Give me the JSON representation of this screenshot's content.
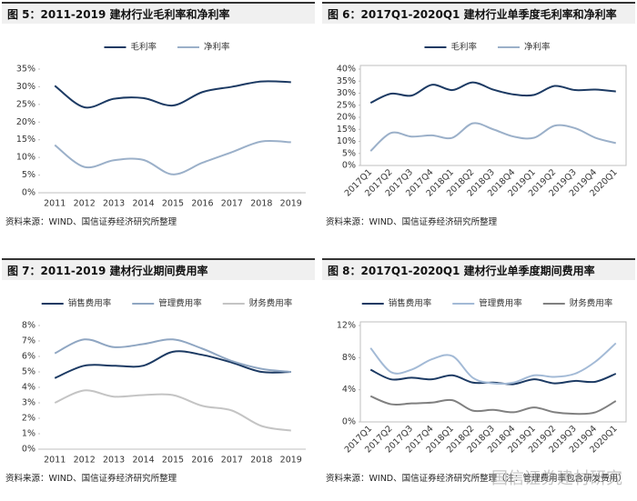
{
  "watermark": "国信证券建材研究",
  "chart_data": [
    {
      "type": "line",
      "title": "图 5：2011-2019 建材行业毛利率和净利率",
      "source": "资料来源：WIND、国信证券经济研究所整理",
      "categories": [
        "2011",
        "2012",
        "2013",
        "2014",
        "2015",
        "2016",
        "2017",
        "2018",
        "2019"
      ],
      "series": [
        {
          "name": "毛利率",
          "color": "#1c3a63",
          "values": [
            30.3,
            24.2,
            26.6,
            26.8,
            24.7,
            28.5,
            30.0,
            31.5,
            31.3
          ]
        },
        {
          "name": "净利率",
          "color": "#9bb0c9",
          "values": [
            13.5,
            7.3,
            9.2,
            9.3,
            5.2,
            8.5,
            11.5,
            14.5,
            14.3
          ]
        }
      ],
      "ylim": [
        0,
        35
      ],
      "yticks": [
        {
          "value": 0,
          "label": "0%"
        },
        {
          "value": 5,
          "label": "5%"
        },
        {
          "value": 10,
          "label": "10%"
        },
        {
          "value": 15,
          "label": "15%"
        },
        {
          "value": 20,
          "label": "20%"
        },
        {
          "value": 25,
          "label": "25%"
        },
        {
          "value": 30,
          "label": "30%"
        },
        {
          "value": 35,
          "label": "35%"
        }
      ],
      "frame": false,
      "rotate_labels": false
    },
    {
      "type": "line",
      "title": "图 6：2017Q1-2020Q1 建材行业单季度毛利率和净利率",
      "source": "资料来源：WIND、国信证券经济研究所整理",
      "categories": [
        "2017Q1",
        "2017Q2",
        "2017Q3",
        "2017Q4",
        "2018Q1",
        "2018Q2",
        "2018Q3",
        "2018Q4",
        "2019Q1",
        "2019Q2",
        "2019Q3",
        "2019Q4",
        "2020Q1"
      ],
      "series": [
        {
          "name": "毛利率",
          "color": "#1c3a63",
          "values": [
            26.0,
            29.8,
            29.0,
            33.5,
            31.3,
            34.5,
            31.5,
            29.5,
            29.3,
            33.0,
            31.3,
            31.5,
            30.7
          ]
        },
        {
          "name": "净利率",
          "color": "#9bb0c9",
          "values": [
            6.0,
            13.5,
            12.0,
            12.5,
            11.5,
            17.5,
            15.0,
            12.0,
            11.5,
            16.5,
            15.5,
            11.5,
            9.3
          ]
        }
      ],
      "ylim": [
        0,
        40
      ],
      "yticks": [
        {
          "value": 0,
          "label": "0%"
        },
        {
          "value": 5,
          "label": "5%"
        },
        {
          "value": 10,
          "label": "10%"
        },
        {
          "value": 15,
          "label": "15%"
        },
        {
          "value": 20,
          "label": "20%"
        },
        {
          "value": 25,
          "label": "25%"
        },
        {
          "value": 30,
          "label": "30%"
        },
        {
          "value": 35,
          "label": "35%"
        },
        {
          "value": 40,
          "label": "40%"
        }
      ],
      "frame": true,
      "rotate_labels": true
    },
    {
      "type": "line",
      "title": "图 7：2011-2019 建材行业期间费用率",
      "source": "资料来源：WIND、国信证券经济研究所整理",
      "categories": [
        "2011",
        "2012",
        "2013",
        "2014",
        "2015",
        "2016",
        "2017",
        "2018",
        "2019"
      ],
      "series": [
        {
          "name": "销售费用率",
          "color": "#1c3a63",
          "values": [
            4.6,
            5.4,
            5.4,
            5.4,
            6.3,
            6.1,
            5.6,
            5.0,
            5.0
          ]
        },
        {
          "name": "管理费用率",
          "color": "#8fa6c2",
          "values": [
            6.2,
            7.1,
            6.6,
            6.8,
            7.1,
            6.5,
            5.7,
            5.2,
            5.0
          ]
        },
        {
          "name": "财务费用率",
          "color": "#c4c4c4",
          "values": [
            3.0,
            3.8,
            3.4,
            3.5,
            3.5,
            2.8,
            2.5,
            1.5,
            1.2
          ]
        }
      ],
      "ylim": [
        0,
        8
      ],
      "yticks": [
        {
          "value": 0,
          "label": "0%"
        },
        {
          "value": 1,
          "label": "1%"
        },
        {
          "value": 2,
          "label": "2%"
        },
        {
          "value": 3,
          "label": "3%"
        },
        {
          "value": 4,
          "label": "4%"
        },
        {
          "value": 5,
          "label": "5%"
        },
        {
          "value": 6,
          "label": "6%"
        },
        {
          "value": 7,
          "label": "7%"
        },
        {
          "value": 8,
          "label": "8%"
        }
      ],
      "frame": false,
      "rotate_labels": false
    },
    {
      "type": "line",
      "title": "图 8：2017Q1-2020Q1 建材行业单季度期间费用率",
      "source": "资料来源：WIND、国信证券经济研究所整理（注：管理费用率包含研发费用）",
      "categories": [
        "2017Q1",
        "2017Q2",
        "2017Q3",
        "2017Q4",
        "2018Q1",
        "2018Q2",
        "2018Q3",
        "2018Q4",
        "2019Q1",
        "2019Q2",
        "2019Q3",
        "2019Q4",
        "2020Q1"
      ],
      "series": [
        {
          "name": "销售费用率",
          "color": "#1c3a63",
          "values": [
            6.5,
            5.3,
            5.5,
            5.3,
            5.8,
            4.9,
            4.9,
            4.7,
            5.3,
            4.8,
            5.1,
            5.0,
            6.0
          ]
        },
        {
          "name": "管理费用率",
          "color": "#a3bad6",
          "values": [
            9.2,
            6.2,
            6.5,
            7.8,
            8.2,
            5.5,
            4.8,
            4.9,
            5.8,
            5.6,
            6.0,
            7.5,
            9.8
          ]
        },
        {
          "name": "财务费用率",
          "color": "#808080",
          "values": [
            3.2,
            2.2,
            2.3,
            2.4,
            2.7,
            1.4,
            1.5,
            1.2,
            1.8,
            1.2,
            1.0,
            1.2,
            2.6
          ]
        }
      ],
      "ylim": [
        0,
        12
      ],
      "yticks": [
        {
          "value": 0,
          "label": "0%"
        },
        {
          "value": 4,
          "label": "4%"
        },
        {
          "value": 8,
          "label": "8%"
        },
        {
          "value": 12,
          "label": "12%"
        }
      ],
      "frame": true,
      "rotate_labels": true
    }
  ]
}
